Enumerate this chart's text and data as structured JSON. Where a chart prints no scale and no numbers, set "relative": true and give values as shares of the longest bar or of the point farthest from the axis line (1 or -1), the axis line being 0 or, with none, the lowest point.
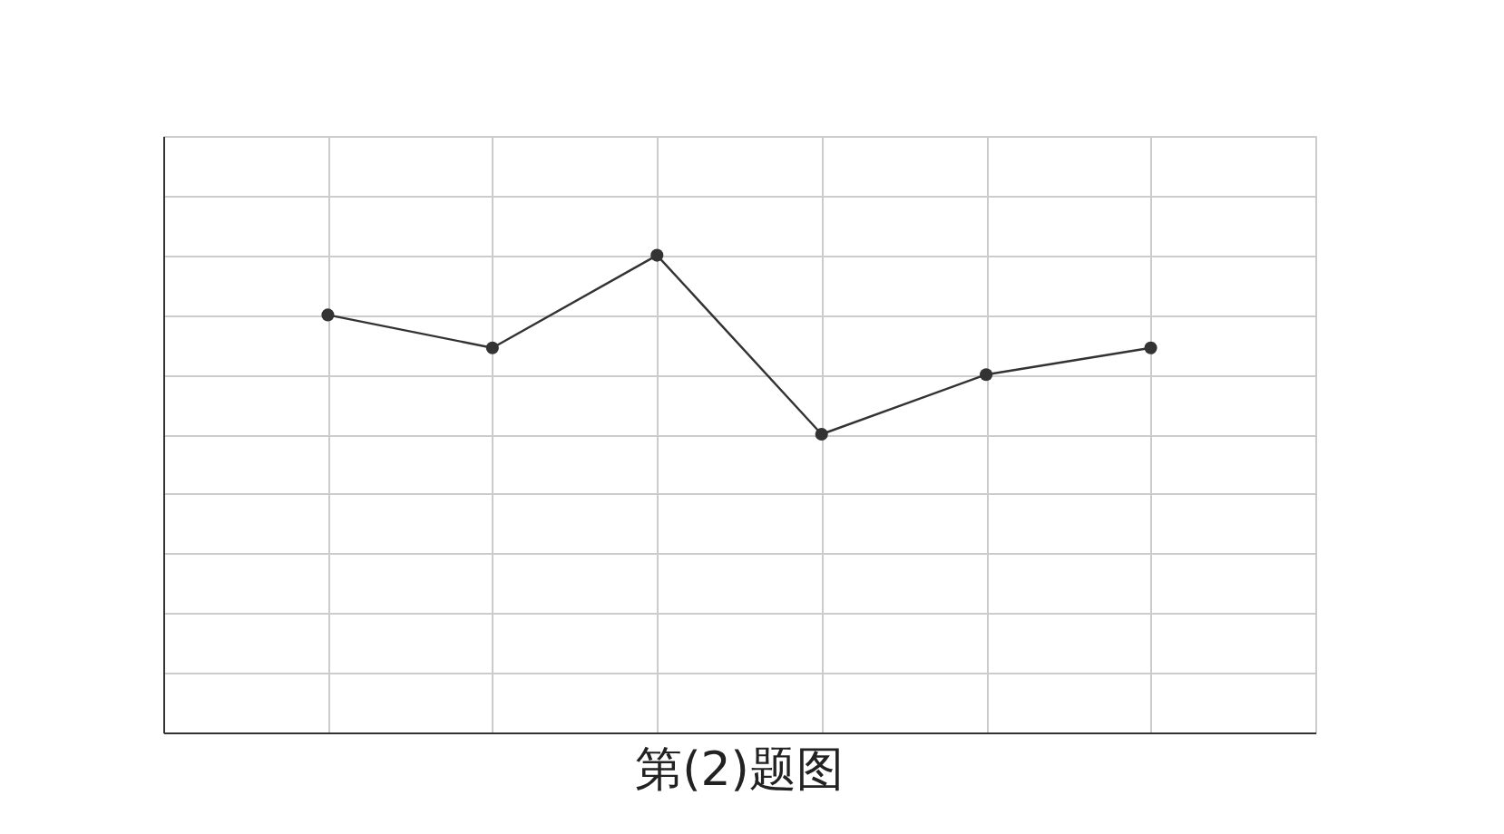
{
  "chart_data": {
    "type": "line",
    "title": "第(2)题图",
    "relative": true,
    "categories": [
      null,
      null,
      null,
      null,
      null,
      null
    ],
    "series": [
      {
        "color": "#333333",
        "values": [
          0.875,
          0.806,
          1,
          0.625,
          0.75,
          0.806
        ]
      }
    ],
    "marker": "circle",
    "line_style": "solid",
    "grid": true,
    "tick_labels": false
  }
}
